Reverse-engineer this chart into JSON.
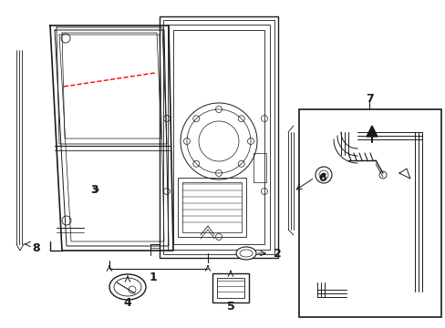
{
  "bg_color": "#ffffff",
  "line_color": "#1a1a1a",
  "red_dashed_color": "#ff0000",
  "figsize": [
    4.89,
    3.6
  ],
  "dpi": 100,
  "label_fontsize": 8.5,
  "xlim": [
    0,
    489
  ],
  "ylim": [
    0,
    360
  ]
}
